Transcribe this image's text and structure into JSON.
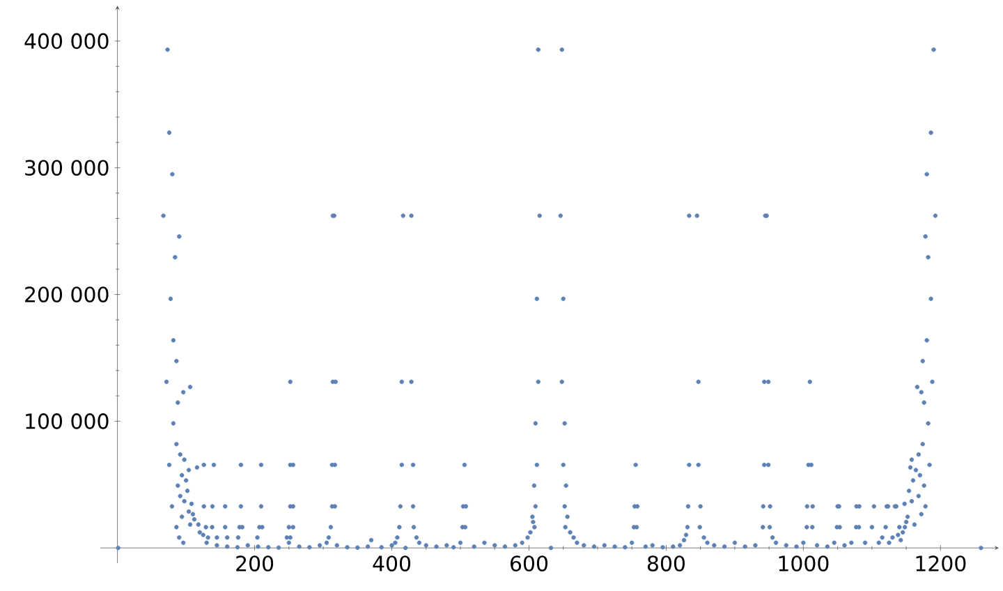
{
  "chart_data": {
    "type": "scatter",
    "color": "#5e81b5",
    "xlim": [
      -25,
      1285
    ],
    "ylim": [
      -12000,
      428000
    ],
    "xticks": [
      200,
      400,
      600,
      800,
      1000,
      1200
    ],
    "yticks": [
      {
        "value": 100000,
        "label": "100 000"
      },
      {
        "value": 200000,
        "label": "200 000"
      },
      {
        "value": 300000,
        "label": "300 000"
      },
      {
        "value": 400000,
        "label": "400 000"
      }
    ],
    "x": [
      1,
      73,
      75.5,
      80,
      67,
      90,
      84,
      77.5,
      81.5,
      86,
      71.5,
      106,
      96,
      88,
      81.5,
      86,
      91.5,
      97.5,
      75.5,
      104,
      116,
      126,
      140.5,
      94,
      100,
      88,
      102,
      91.5,
      97.5,
      79.5,
      108,
      126,
      138.5,
      94,
      104,
      110,
      112,
      86,
      106,
      118,
      90,
      96,
      180,
      209.5,
      252,
      256,
      313,
      317,
      157,
      180,
      209.5,
      252,
      256,
      313,
      317,
      252,
      314,
      318,
      314,
      316,
      138,
      157,
      178,
      182,
      207,
      211,
      250,
      256,
      311,
      129,
      120,
      125,
      132,
      145,
      160,
      176,
      204,
      247,
      252,
      308,
      613.5,
      648,
      416.5,
      428.5,
      615.5,
      646,
      833.5,
      611.5,
      650,
      414.5,
      428.5,
      613.5,
      648,
      609.5,
      652,
      414.5,
      431,
      506,
      611.5,
      650,
      755.5,
      833.5,
      607.5,
      654,
      412.5,
      431,
      504,
      508,
      609.5,
      652,
      754,
      758,
      832,
      411,
      432,
      503,
      507,
      608,
      653,
      753,
      757,
      831,
      605,
      656,
      845,
      944.5,
      946.5,
      1192.5,
      1190,
      1186,
      1180,
      1178,
      1182,
      1186,
      1180,
      1174,
      847,
      943,
      949,
      1009.5,
      1188,
      1166,
      1172,
      1176,
      1182,
      1174,
      1168,
      1158,
      847,
      943,
      949,
      1007.5,
      1011.5,
      1184,
      1156,
      1164,
      1170,
      1160,
      1176,
      1154,
      1168,
      1158,
      1178,
      1147.5,
      1172,
      850,
      941.5,
      951.5,
      1005.5,
      1013.5,
      1050,
      1052,
      1077.5,
      1081.5,
      1103,
      1121.5,
      1123.5,
      1133.5,
      1135.5,
      849,
      941,
      951,
      1005,
      1013,
      1049,
      1053,
      1077,
      1081,
      1100,
      1120,
      1140,
      1150,
      1162,
      1145,
      130,
      145,
      160,
      175,
      190,
      205,
      220,
      235,
      250,
      265,
      280,
      295,
      305,
      320,
      335,
      350,
      365,
      370,
      385,
      400,
      405,
      408,
      420,
      436,
      440,
      450,
      465,
      480,
      490,
      500,
      520,
      535,
      550,
      565,
      580,
      590,
      598,
      602,
      606,
      660,
      665,
      670,
      680,
      695,
      710,
      725,
      740,
      750,
      770,
      780,
      795,
      810,
      820,
      826,
      829,
      855,
      860,
      870,
      885,
      900,
      915,
      930,
      955,
      960,
      975,
      990,
      1000,
      1020,
      1035,
      1045,
      1060,
      1070,
      1090,
      1110,
      1115,
      1125,
      1130,
      1138,
      1142,
      1148,
      1152,
      632,
      1259
    ],
    "values": [
      0,
      393216,
      327680,
      294912,
      262144,
      245760,
      229376,
      196608,
      163840,
      147456,
      131072,
      126976,
      122880,
      114688,
      98304,
      81920,
      73728,
      69632,
      65536,
      61440,
      63488,
      65536,
      65536,
      57344,
      53248,
      49152,
      45056,
      40960,
      36864,
      32768,
      34816,
      32768,
      32768,
      24576,
      28672,
      26624,
      22528,
      16384,
      18432,
      18432,
      8192,
      4096,
      65536,
      65536,
      65536,
      65536,
      65536,
      65536,
      32768,
      32768,
      32768,
      32768,
      32768,
      32768,
      32768,
      131072,
      131072,
      131072,
      262144,
      262144,
      16384,
      16384,
      16384,
      16384,
      16384,
      16384,
      16384,
      16384,
      16384,
      16384,
      12288,
      10240,
      8192,
      8192,
      8192,
      8192,
      8192,
      8192,
      8192,
      8192,
      393216,
      393216,
      262144,
      262144,
      262144,
      262144,
      262144,
      196608,
      196608,
      131072,
      131072,
      131072,
      131072,
      98304,
      98304,
      65536,
      65536,
      65536,
      65536,
      65536,
      65536,
      65536,
      49152,
      49152,
      32768,
      32768,
      32768,
      32768,
      32768,
      32768,
      32768,
      32768,
      32768,
      16384,
      16384,
      16384,
      16384,
      16384,
      16384,
      16384,
      16384,
      16384,
      24576,
      24576,
      262144,
      262144,
      262144,
      262144,
      393216,
      327680,
      294912,
      245760,
      229376,
      196608,
      163840,
      147456,
      131072,
      131072,
      131072,
      131072,
      131072,
      126976,
      122880,
      114688,
      98304,
      81920,
      73728,
      69632,
      65536,
      65536,
      65536,
      65536,
      65536,
      65536,
      63488,
      61440,
      57344,
      53248,
      49152,
      45056,
      40960,
      36864,
      32768,
      34816,
      26624,
      32768,
      32768,
      32768,
      32768,
      32768,
      32768,
      32768,
      32768,
      32768,
      32768,
      32768,
      32768,
      32768,
      32768,
      16384,
      16384,
      16384,
      16384,
      16384,
      16384,
      16384,
      16384,
      16384,
      16384,
      16384,
      16384,
      20480,
      18432,
      12288,
      4096,
      2048,
      1024,
      512,
      2048,
      1024,
      512,
      256,
      4096,
      1024,
      512,
      2048,
      4096,
      2048,
      512,
      256,
      1024,
      6144,
      512,
      2048,
      4096,
      8192,
      0,
      8192,
      4096,
      2048,
      1024,
      2048,
      512,
      4096,
      1024,
      4096,
      2048,
      1024,
      2048,
      4096,
      8192,
      12288,
      20480,
      12288,
      8192,
      4096,
      2048,
      1024,
      2048,
      1024,
      512,
      4096,
      1024,
      2048,
      512,
      1024,
      2048,
      6144,
      10240,
      8192,
      4096,
      2048,
      1024,
      4096,
      1024,
      2048,
      8192,
      4096,
      2048,
      1024,
      4096,
      2048,
      1024,
      4096,
      2048,
      4096,
      4096,
      4096,
      8192,
      4096,
      8192,
      10240,
      6144,
      16384,
      24576,
      0,
      0
    ]
  }
}
